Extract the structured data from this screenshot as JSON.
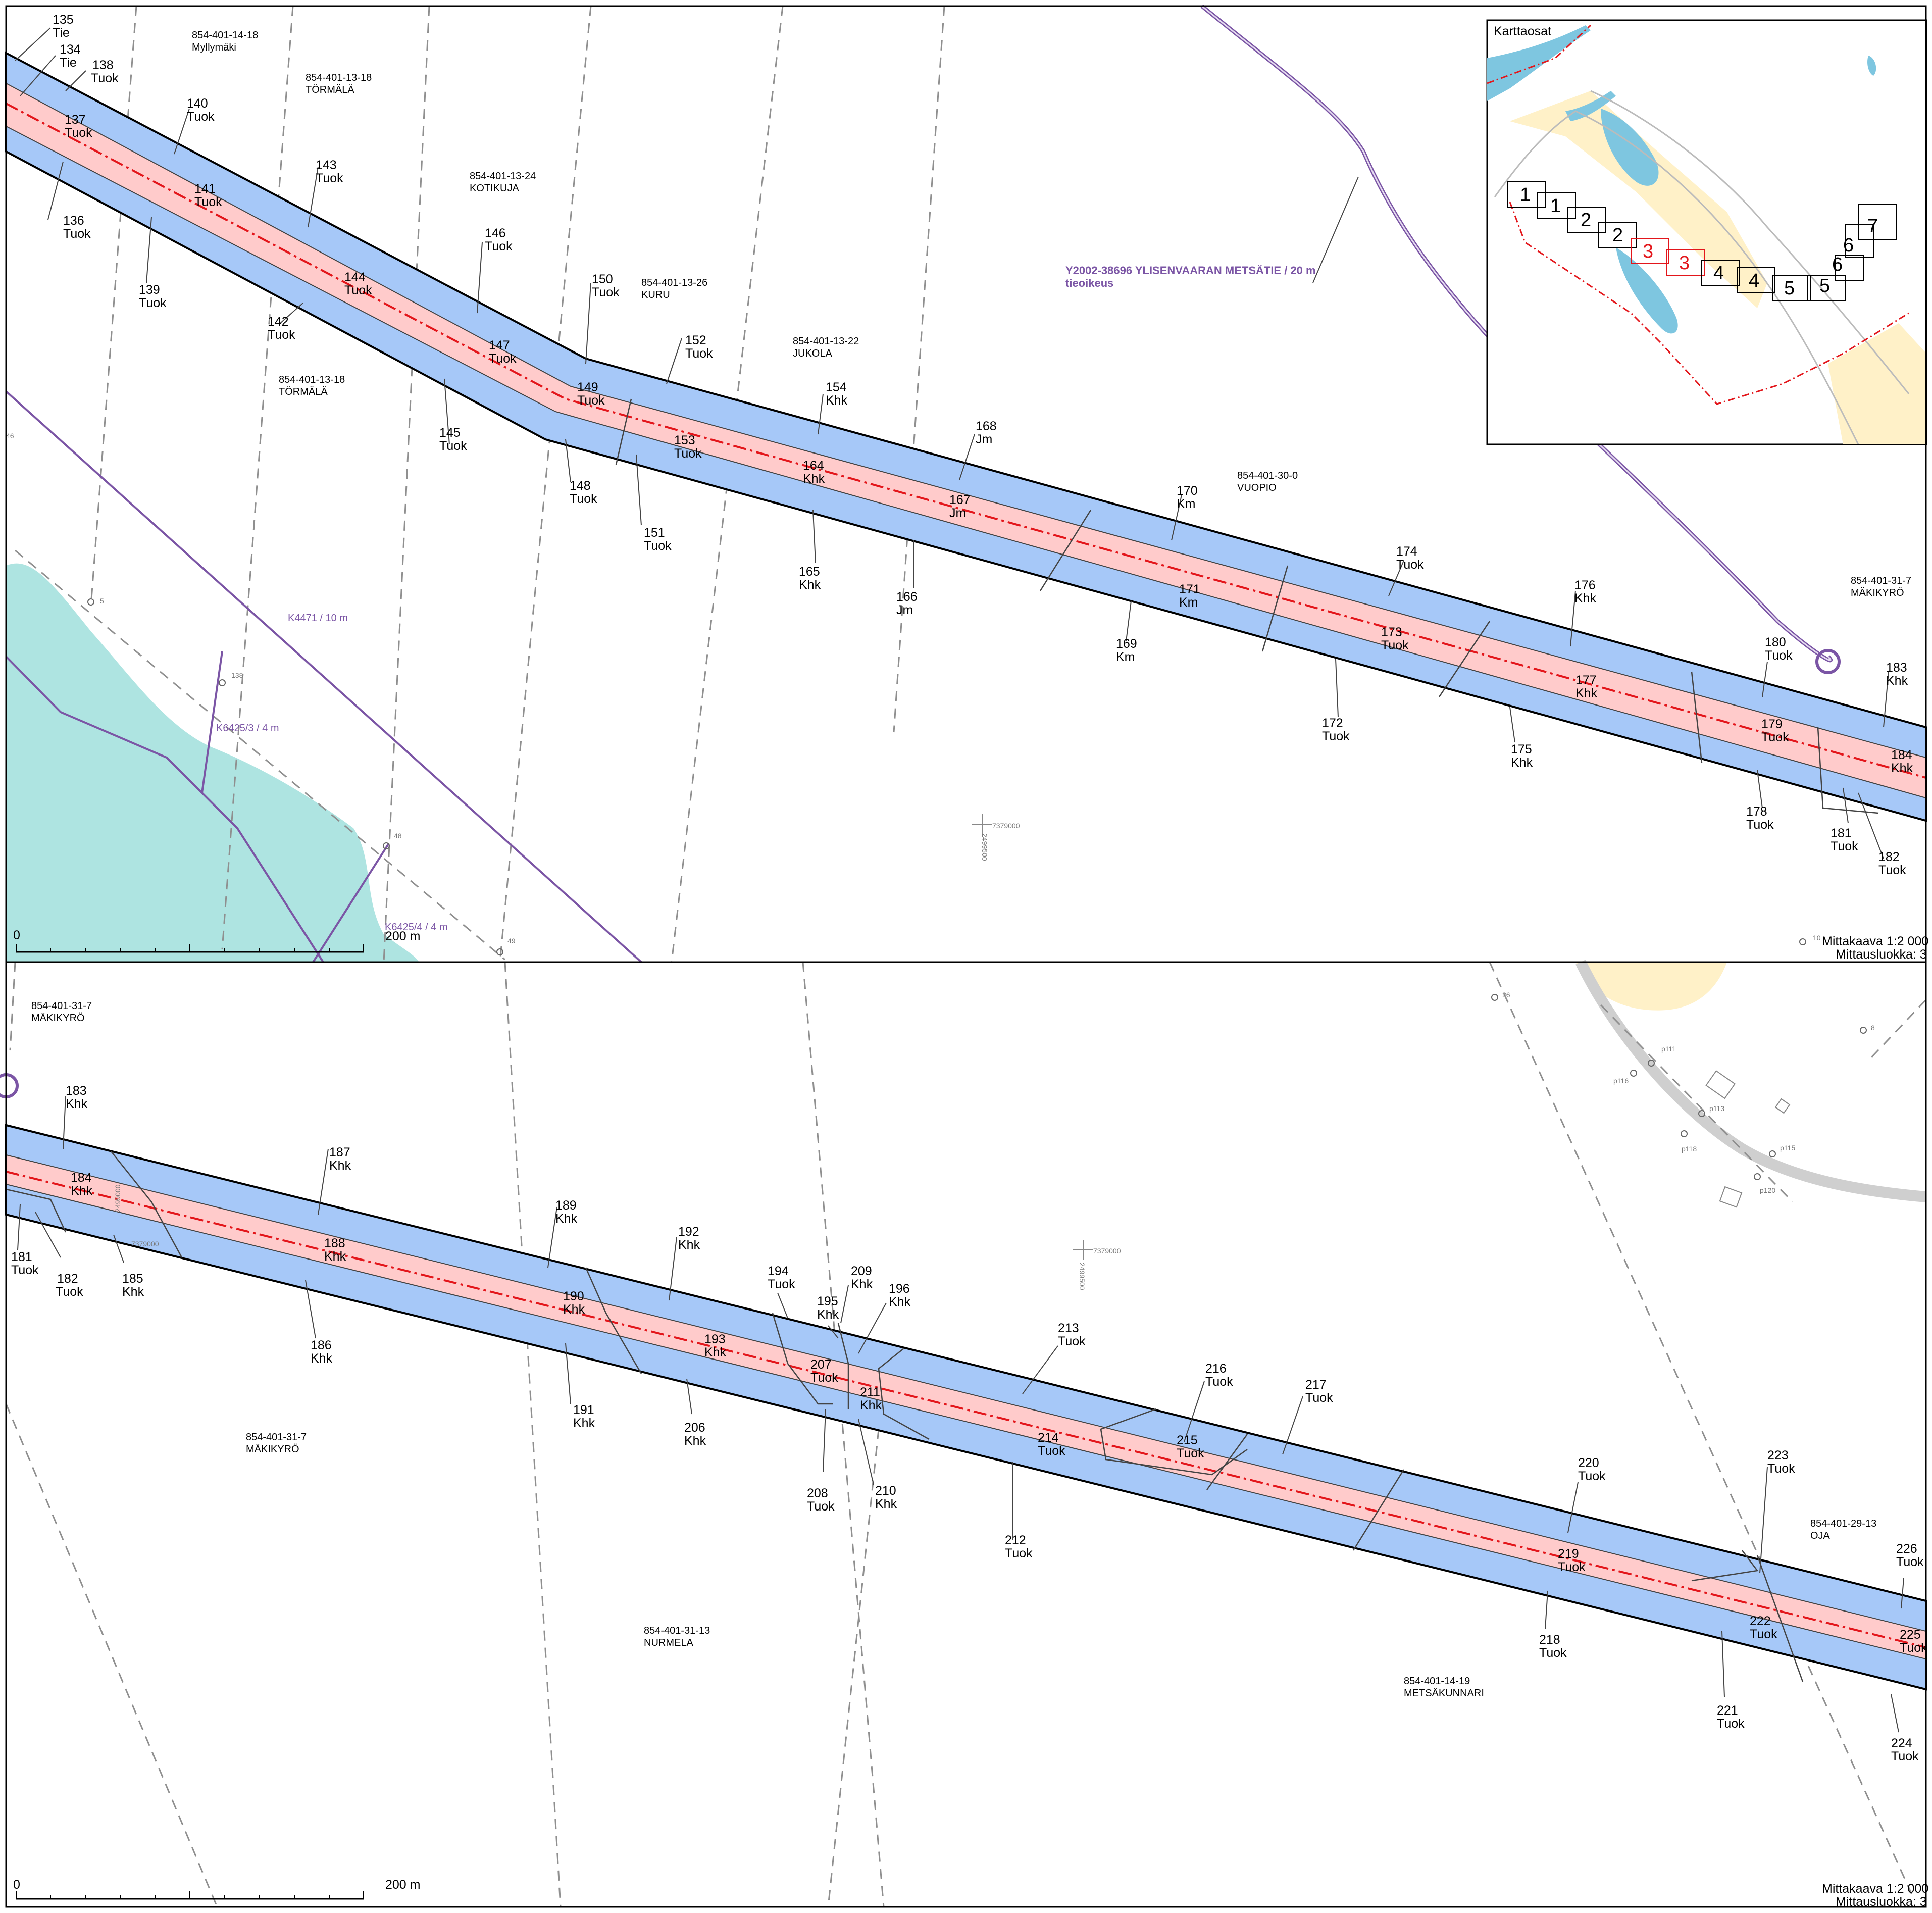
{
  "panels": [
    {
      "id": "top",
      "scale_text": "Mittakaava 1:2 000",
      "class_text": "Mittausluokka: 3",
      "scalebar_start": "0",
      "scalebar_end": "200 m",
      "properties": [
        {
          "code": "854-401-14-18",
          "name": "Myllymäki"
        },
        {
          "code": "854-401-13-18",
          "name": "TÖRMÄLÄ"
        },
        {
          "code": "854-401-13-24",
          "name": "KOTIKUJA"
        },
        {
          "code": "854-401-13-26",
          "name": "KURU"
        },
        {
          "code": "854-401-13-22",
          "name": "JUKOLA"
        },
        {
          "code": "854-401-13-18",
          "name": "TÖRMÄLÄ"
        },
        {
          "code": "854-401-30-0",
          "name": "VUOPIO"
        },
        {
          "code": "854-401-31-7",
          "name": "MÄKIKYRÖ"
        }
      ],
      "parcels": [
        {
          "id": "135",
          "type": "Tie"
        },
        {
          "id": "134",
          "type": "Tie"
        },
        {
          "id": "138",
          "type": "Tuok"
        },
        {
          "id": "137",
          "type": "Tuok"
        },
        {
          "id": "136",
          "type": "Tuok"
        },
        {
          "id": "140",
          "type": "Tuok"
        },
        {
          "id": "141",
          "type": "Tuok"
        },
        {
          "id": "139",
          "type": "Tuok"
        },
        {
          "id": "143",
          "type": "Tuok"
        },
        {
          "id": "144",
          "type": "Tuok"
        },
        {
          "id": "142",
          "type": "Tuok"
        },
        {
          "id": "146",
          "type": "Tuok"
        },
        {
          "id": "147",
          "type": "Tuok"
        },
        {
          "id": "145",
          "type": "Tuok"
        },
        {
          "id": "150",
          "type": "Tuok"
        },
        {
          "id": "149",
          "type": "Tuok"
        },
        {
          "id": "148",
          "type": "Tuok"
        },
        {
          "id": "152",
          "type": "Tuok"
        },
        {
          "id": "153",
          "type": "Tuok"
        },
        {
          "id": "151",
          "type": "Tuok"
        },
        {
          "id": "154",
          "type": "Khk"
        },
        {
          "id": "164",
          "type": "Khk"
        },
        {
          "id": "165",
          "type": "Khk"
        },
        {
          "id": "168",
          "type": "Jm"
        },
        {
          "id": "167",
          "type": "Jm"
        },
        {
          "id": "166",
          "type": "Jm"
        },
        {
          "id": "170",
          "type": "Km"
        },
        {
          "id": "171",
          "type": "Km"
        },
        {
          "id": "169",
          "type": "Km"
        },
        {
          "id": "174",
          "type": "Tuok"
        },
        {
          "id": "173",
          "type": "Tuok"
        },
        {
          "id": "172",
          "type": "Tuok"
        },
        {
          "id": "176",
          "type": "Khk"
        },
        {
          "id": "177",
          "type": "Khk"
        },
        {
          "id": "175",
          "type": "Khk"
        },
        {
          "id": "180",
          "type": "Tuok"
        },
        {
          "id": "179",
          "type": "Tuok"
        },
        {
          "id": "178",
          "type": "Tuok"
        },
        {
          "id": "183",
          "type": "Khk"
        },
        {
          "id": "184",
          "type": "Khk"
        },
        {
          "id": "181",
          "type": "Tuok"
        },
        {
          "id": "182",
          "type": "Tuok"
        }
      ],
      "easements": [
        "K4471 / 10 m",
        "K6425/3 / 4 m",
        "K6425/4 / 4 m"
      ],
      "road_label": [
        "Y2002-38696 YLISENVAARAN METSÄTIE / 20 m",
        "tieoikeus"
      ],
      "points": [
        "46",
        "5",
        "138",
        "48",
        "49",
        "10"
      ],
      "grid": [
        "7379000",
        "2499500"
      ]
    },
    {
      "id": "bottom",
      "scale_text": "Mittakaava 1:2 000",
      "class_text": "Mittausluokka: 3",
      "scalebar_start": "0",
      "scalebar_end": "200 m",
      "properties": [
        {
          "code": "854-401-31-7",
          "name": "MÄKIKYRÖ"
        },
        {
          "code": "854-401-31-7",
          "name": "MÄKIKYRÖ"
        },
        {
          "code": "854-401-31-13",
          "name": "NURMELA"
        },
        {
          "code": "854-401-14-19",
          "name": "METSÄKUNNARI"
        },
        {
          "code": "854-401-29-13",
          "name": "OJA"
        }
      ],
      "parcels": [
        {
          "id": "183",
          "type": "Khk"
        },
        {
          "id": "184",
          "type": "Khk"
        },
        {
          "id": "181",
          "type": "Tuok"
        },
        {
          "id": "182",
          "type": "Tuok"
        },
        {
          "id": "185",
          "type": "Khk"
        },
        {
          "id": "187",
          "type": "Khk"
        },
        {
          "id": "188",
          "type": "Khk"
        },
        {
          "id": "186",
          "type": "Khk"
        },
        {
          "id": "189",
          "type": "Khk"
        },
        {
          "id": "190",
          "type": "Khk"
        },
        {
          "id": "191",
          "type": "Khk"
        },
        {
          "id": "192",
          "type": "Khk"
        },
        {
          "id": "193",
          "type": "Khk"
        },
        {
          "id": "206",
          "type": "Khk"
        },
        {
          "id": "194",
          "type": "Tuok"
        },
        {
          "id": "195",
          "type": "Khk"
        },
        {
          "id": "209",
          "type": "Khk"
        },
        {
          "id": "196",
          "type": "Khk"
        },
        {
          "id": "207",
          "type": "Tuok"
        },
        {
          "id": "211",
          "type": "Khk"
        },
        {
          "id": "208",
          "type": "Tuok"
        },
        {
          "id": "210",
          "type": "Khk"
        },
        {
          "id": "213",
          "type": "Tuok"
        },
        {
          "id": "214",
          "type": "Tuok"
        },
        {
          "id": "212",
          "type": "Tuok"
        },
        {
          "id": "216",
          "type": "Tuok"
        },
        {
          "id": "215",
          "type": "Tuok"
        },
        {
          "id": "217",
          "type": "Tuok"
        },
        {
          "id": "220",
          "type": "Tuok"
        },
        {
          "id": "219",
          "type": "Tuok"
        },
        {
          "id": "218",
          "type": "Tuok"
        },
        {
          "id": "223",
          "type": "Tuok"
        },
        {
          "id": "222",
          "type": "Tuok"
        },
        {
          "id": "221",
          "type": "Tuok"
        },
        {
          "id": "226",
          "type": "Tuok"
        },
        {
          "id": "225",
          "type": "Tuok"
        },
        {
          "id": "224",
          "type": "Tuok"
        }
      ],
      "points": [
        "26",
        "8",
        "p111",
        "p116",
        "p113",
        "p118",
        "p115",
        "p120"
      ],
      "grid": [
        "7379000",
        "2499500",
        "2499000"
      ]
    }
  ],
  "inset": {
    "title": "Karttaosat",
    "sheets": [
      "1",
      "1",
      "2",
      "2",
      "3",
      "3",
      "4",
      "4",
      "5",
      "5",
      "6",
      "6",
      "7"
    ],
    "current_sheet_color": "#e3161b"
  },
  "colors": {
    "corridor_outer": "#a6c8f8",
    "corridor_inner": "#ffcbcb",
    "centerline": "#e3161b",
    "water": "#aee4e1",
    "easement": "#7b55a5",
    "field": "#fff1c8"
  }
}
